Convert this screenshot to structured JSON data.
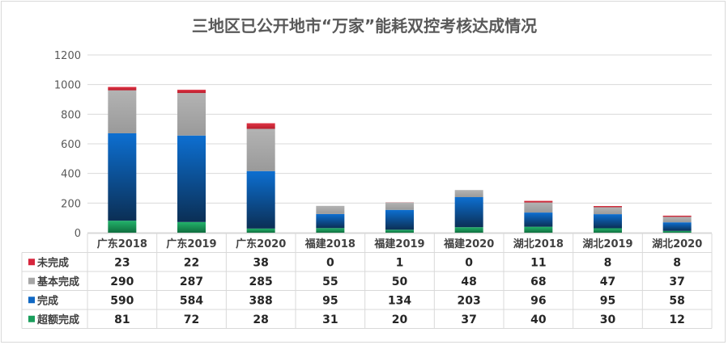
{
  "chart_data": {
    "type": "bar",
    "stacked": true,
    "title": "三地区已公开地市“万家”能耗双控考核达成情况",
    "categories": [
      "广东2018",
      "广东2019",
      "广东2020",
      "福建2018",
      "福建2019",
      "福建2020",
      "湖北2018",
      "湖北2019",
      "湖北2020"
    ],
    "series": [
      {
        "name": "超额完成",
        "color": "#1a9e5c",
        "values": [
          81,
          72,
          28,
          31,
          20,
          37,
          40,
          30,
          12
        ]
      },
      {
        "name": "完成",
        "color": "#1068c4",
        "values": [
          590,
          584,
          388,
          95,
          134,
          203,
          96,
          95,
          58
        ]
      },
      {
        "name": "基本完成",
        "color": "#a6a6a6",
        "values": [
          290,
          287,
          285,
          55,
          50,
          48,
          68,
          47,
          37
        ]
      },
      {
        "name": "未完成",
        "color": "#d7263d",
        "values": [
          23,
          22,
          38,
          0,
          1,
          0,
          11,
          8,
          8
        ]
      }
    ],
    "table_order": [
      "未完成",
      "基本完成",
      "完成",
      "超额完成"
    ],
    "ylim": [
      0,
      1200
    ],
    "yticks": [
      0,
      200,
      400,
      600,
      800,
      1000,
      1200
    ],
    "grid": true,
    "legend": "data-table"
  }
}
